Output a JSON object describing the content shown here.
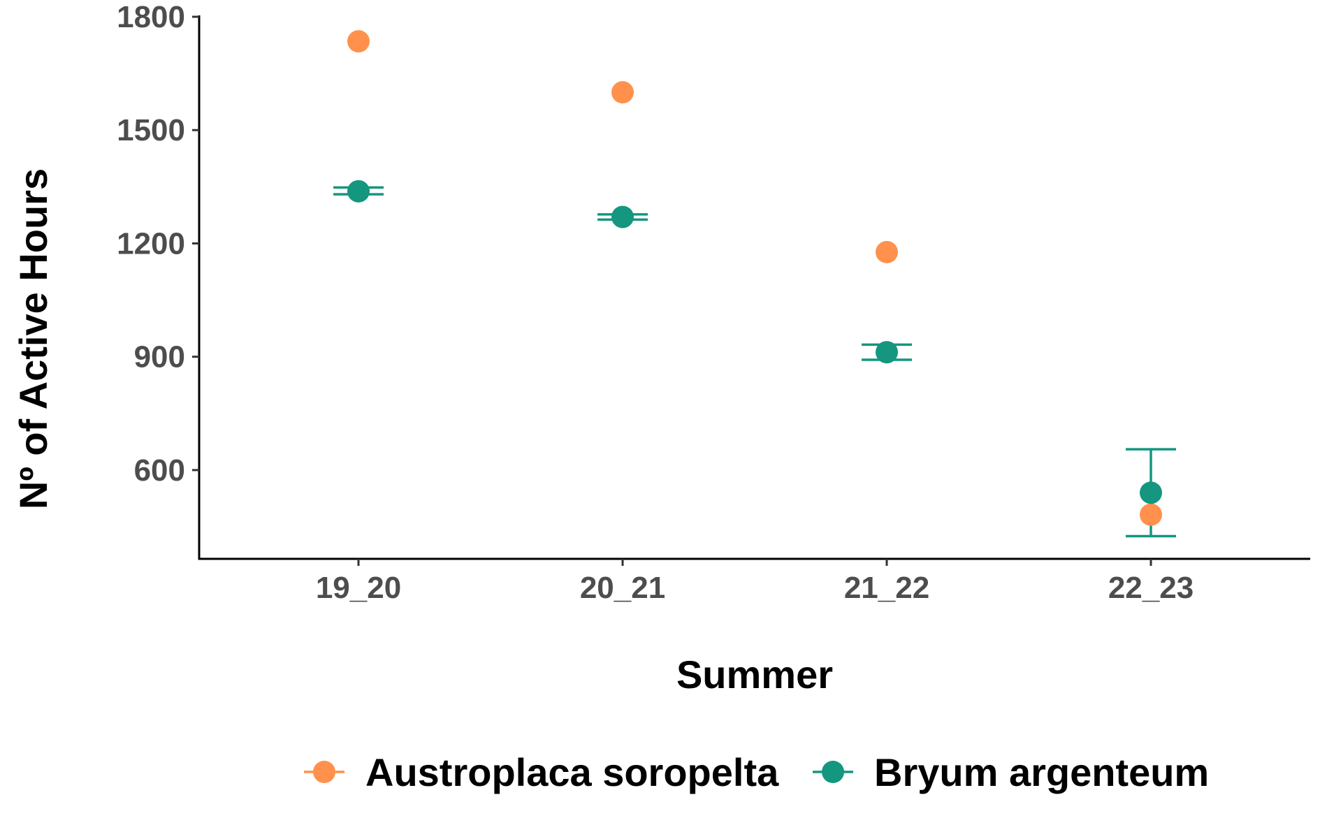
{
  "chart_data": {
    "type": "scatter",
    "xlabel": "Summer",
    "ylabel": "Nº of Active Hours",
    "categories": [
      "19_20",
      "20_21",
      "21_22",
      "22_23"
    ],
    "ylim": [
      365,
      1800
    ],
    "yticks": [
      600,
      900,
      1200,
      1500,
      1800
    ],
    "grid": false,
    "legend_position": "bottom",
    "series": [
      {
        "name": "Austroplaca soropelta",
        "color": "#FF914D",
        "values": [
          1735,
          1600,
          1177,
          482
        ],
        "error_low": [
          null,
          null,
          null,
          null
        ],
        "error_high": [
          null,
          null,
          null,
          null
        ]
      },
      {
        "name": "Bryum argenteum",
        "color": "#14967F",
        "values": [
          1338,
          1270,
          912,
          540
        ],
        "error_low": [
          1330,
          1263,
          892,
          425
        ],
        "error_high": [
          1348,
          1277,
          932,
          655
        ]
      }
    ]
  }
}
